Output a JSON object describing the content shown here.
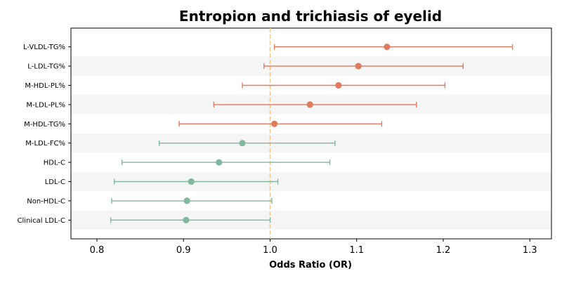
{
  "chart_data": {
    "type": "forest",
    "title": "Entropion and trichiasis of eyelid",
    "xlabel": "Odds Ratio (OR)",
    "xlim": [
      0.77,
      1.325
    ],
    "xticks": [
      0.8,
      0.9,
      1.0,
      1.1,
      1.2,
      1.3
    ],
    "xtick_labels": [
      "0.8",
      "0.9",
      "1.0",
      "1.1",
      "1.2",
      "1.3"
    ],
    "reference_line": 1.0,
    "colors": {
      "risk": "#e07b5f",
      "protective": "#82b89e",
      "reference": "#f5c98a",
      "stripe": "#f5f5f5"
    },
    "rows": [
      {
        "label": "L-VLDL-TG%",
        "or": 1.135,
        "ci_low": 1.005,
        "ci_high": 1.28
      },
      {
        "label": "L-LDL-TG%",
        "or": 1.102,
        "ci_low": 0.993,
        "ci_high": 1.223
      },
      {
        "label": "M-HDL-PL%",
        "or": 1.079,
        "ci_low": 0.968,
        "ci_high": 1.202
      },
      {
        "label": "M-LDL-PL%",
        "or": 1.046,
        "ci_low": 0.935,
        "ci_high": 1.169
      },
      {
        "label": "M-HDL-TG%",
        "or": 1.005,
        "ci_low": 0.895,
        "ci_high": 1.129
      },
      {
        "label": "M-LDL-FC%",
        "or": 0.968,
        "ci_low": 0.872,
        "ci_high": 1.075
      },
      {
        "label": "HDL-C",
        "or": 0.941,
        "ci_low": 0.829,
        "ci_high": 1.069
      },
      {
        "label": "LDL-C",
        "or": 0.909,
        "ci_low": 0.82,
        "ci_high": 1.009
      },
      {
        "label": "Non-HDL-C",
        "or": 0.904,
        "ci_low": 0.817,
        "ci_high": 1.002
      },
      {
        "label": "Clinical LDL-C",
        "or": 0.903,
        "ci_low": 0.816,
        "ci_high": 1.0
      }
    ]
  }
}
